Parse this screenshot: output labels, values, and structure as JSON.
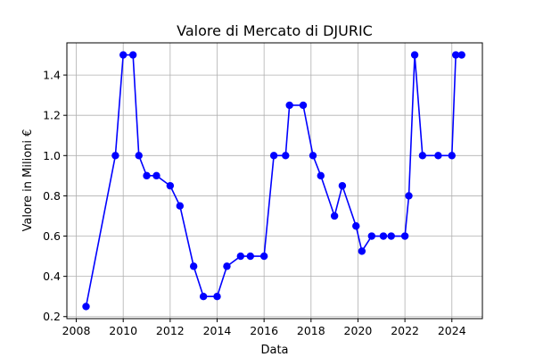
{
  "chart_data": {
    "type": "line",
    "title": "Valore di Mercato di DJURIC",
    "xlabel": "Data",
    "ylabel": "Valore in Milioni €",
    "xlim": [
      2007.6,
      2025.3
    ],
    "ylim": [
      0.19,
      1.56
    ],
    "grid": true,
    "x_ticks": [
      2008,
      2010,
      2012,
      2014,
      2016,
      2018,
      2020,
      2022,
      2024
    ],
    "x_tick_labels": [
      "2008",
      "2010",
      "2012",
      "2014",
      "2016",
      "2018",
      "2020",
      "2022",
      "2024"
    ],
    "y_ticks": [
      0.2,
      0.4,
      0.6,
      0.8,
      1.0,
      1.2,
      1.4
    ],
    "y_tick_labels": [
      "0.2",
      "0.4",
      "0.6",
      "0.8",
      "1.0",
      "1.2",
      "1.4"
    ],
    "series": [
      {
        "color": "#0000ff",
        "marker": "circle",
        "x": [
          "2008-06",
          "2009-09",
          "2010-01",
          "2010-06",
          "2010-09",
          "2011-01",
          "2011-06",
          "2012-01",
          "2012-06",
          "2013-01",
          "2013-06",
          "2014-01",
          "2014-06",
          "2015-01",
          "2015-06",
          "2016-01",
          "2016-06",
          "2016-12",
          "2017-02",
          "2017-09",
          "2018-02",
          "2018-06",
          "2019-01",
          "2019-05",
          "2019-12",
          "2020-03",
          "2020-08",
          "2021-02",
          "2021-06",
          "2022-01",
          "2022-03",
          "2022-06",
          "2022-10",
          "2023-06",
          "2024-01",
          "2024-03",
          "2024-06"
        ],
        "values": [
          0.25,
          1.0,
          1.5,
          1.5,
          1.0,
          0.9,
          0.9,
          0.85,
          0.75,
          0.45,
          0.3,
          0.3,
          0.45,
          0.5,
          0.5,
          0.5,
          1.0,
          1.0,
          1.25,
          1.25,
          1.0,
          0.9,
          0.7,
          0.85,
          0.65,
          0.525,
          0.6,
          0.6,
          0.6,
          0.6,
          0.8,
          1.5,
          1.0,
          1.0,
          1.0,
          1.5,
          1.5
        ]
      }
    ]
  }
}
